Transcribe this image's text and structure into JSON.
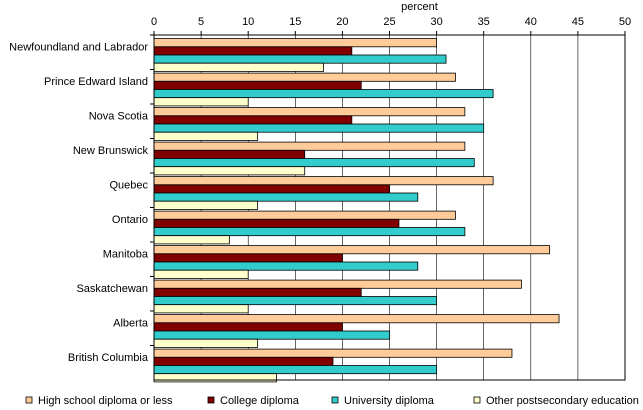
{
  "chart_data": {
    "type": "bar",
    "orientation": "horizontal",
    "xlabel": "percent",
    "xlim": [
      0,
      50
    ],
    "x_ticks": [
      0,
      5,
      10,
      15,
      20,
      25,
      30,
      35,
      40,
      45,
      50
    ],
    "grid": true,
    "legend_position": "bottom",
    "categories": [
      "Newfoundland and Labrador",
      "Prince Edward Island",
      "Nova Scotia",
      "New Brunswick",
      "Quebec",
      "Ontario",
      "Manitoba",
      "Saskatchewan",
      "Alberta",
      "British Columbia"
    ],
    "series": [
      {
        "name": "High school diploma or less",
        "color": "#FFCC99",
        "values": [
          30,
          32,
          33,
          33,
          36,
          32,
          42,
          39,
          43,
          38
        ]
      },
      {
        "name": "College diploma",
        "color": "#800000",
        "values": [
          21,
          22,
          21,
          16,
          25,
          26,
          20,
          22,
          20,
          19
        ]
      },
      {
        "name": "University diploma",
        "color": "#33CCCC",
        "values": [
          31,
          36,
          35,
          34,
          28,
          33,
          28,
          30,
          25,
          30
        ]
      },
      {
        "name": "Other postsecondary education",
        "color": "#FFFFCC",
        "values": [
          18,
          10,
          11,
          16,
          11,
          8,
          10,
          10,
          11,
          13
        ]
      }
    ]
  }
}
